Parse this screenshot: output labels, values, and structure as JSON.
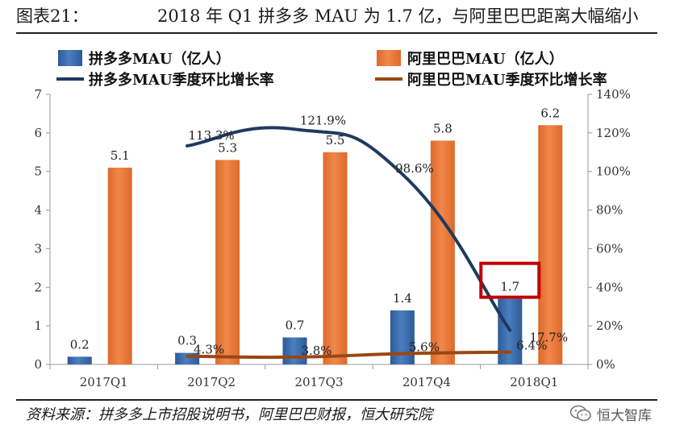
{
  "header": {
    "figure_label": "图表21：",
    "title": "2018 年 Q1 拼多多 MAU 为 1.7 亿，与阿里巴巴距离大幅缩小"
  },
  "footer": {
    "source": "资料来源：拼多多上市招股说明书，阿里巴巴财报，恒大研究院",
    "watermark_text": "恒大智库",
    "watermark_icon": "wechat-icon"
  },
  "colors": {
    "pdd_bar": "#4a7fc0",
    "ali_bar": "#f0874a",
    "pdd_line": "#1f3a5f",
    "ali_line": "#9a4712",
    "highlight_box": "#c00000"
  },
  "chart_data": {
    "type": "bar",
    "categories": [
      "2017Q1",
      "2017Q2",
      "2017Q3",
      "2017Q4",
      "2018Q1"
    ],
    "series": [
      {
        "name": "拼多多MAU（亿人）",
        "type": "bar",
        "axis": "left",
        "values": [
          0.2,
          0.3,
          0.7,
          1.4,
          1.7
        ],
        "labels": [
          "0.2",
          "0.3",
          "0.7",
          "1.4",
          "1.7"
        ]
      },
      {
        "name": "阿里巴巴MAU（亿人）",
        "type": "bar",
        "axis": "left",
        "values": [
          5.1,
          5.3,
          5.5,
          5.8,
          6.2
        ],
        "labels": [
          "5.1",
          "5.3",
          "5.5",
          "5.8",
          "6.2"
        ]
      },
      {
        "name": "拼多多MAU季度环比增长率",
        "type": "line",
        "axis": "right",
        "values": [
          null,
          113.3,
          121.9,
          98.6,
          17.7
        ],
        "labels": [
          "",
          "113.3%",
          "121.9%",
          "98.6%",
          "17.7%"
        ]
      },
      {
        "name": "阿里巴巴MAU季度环比增长率",
        "type": "line",
        "axis": "right",
        "values": [
          null,
          4.3,
          3.8,
          5.6,
          6.4
        ],
        "labels": [
          "",
          "4.3%",
          "3.8%",
          "5.6%",
          "6.4%"
        ]
      }
    ],
    "ylim": [
      0,
      7
    ],
    "yticks": [
      "0",
      "1",
      "2",
      "3",
      "4",
      "5",
      "6",
      "7"
    ],
    "y2lim": [
      0,
      140
    ],
    "y2ticks": [
      "0%",
      "20%",
      "40%",
      "60%",
      "80%",
      "100%",
      "120%",
      "140%"
    ],
    "legend_position": "top",
    "highlight": {
      "series": 0,
      "category": "2018Q1"
    },
    "grid": false
  }
}
